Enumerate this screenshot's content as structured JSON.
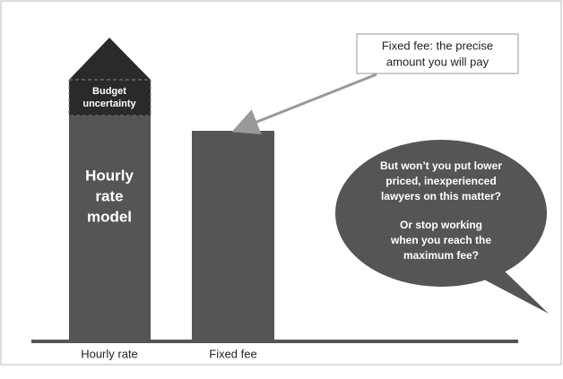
{
  "budget_box": {
    "lines": [
      "Budget",
      "uncertainty"
    ]
  },
  "hourly_bar": {
    "lines": [
      "Hourly",
      "rate",
      "model"
    ]
  },
  "callout": {
    "lines": [
      "Fixed fee: the precise",
      "amount you will pay"
    ]
  },
  "bubble": {
    "lines": [
      "But won’t you put lower",
      "priced, inexperienced",
      "lawyers on this matter?",
      "",
      "Or stop working",
      "when you reach the",
      "maximum fee?"
    ]
  },
  "x_labels": [
    "Hourly rate",
    "Fixed fee"
  ]
}
